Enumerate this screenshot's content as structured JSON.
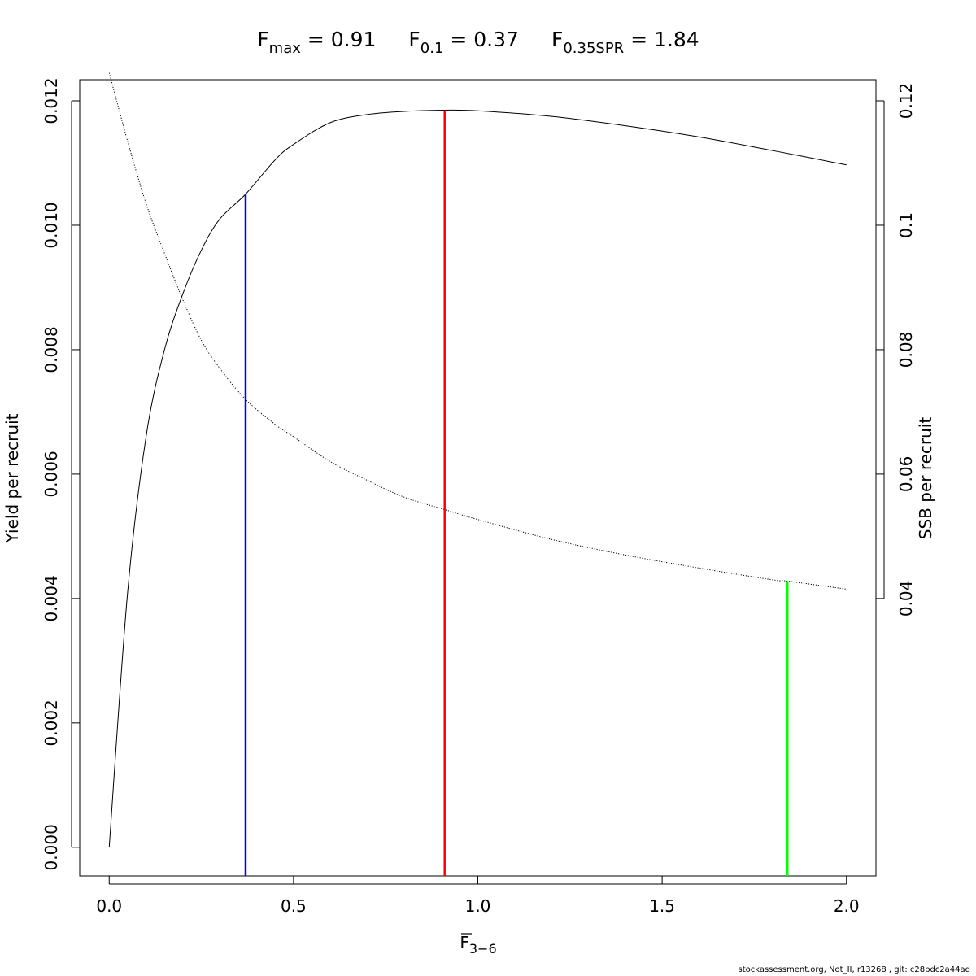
{
  "title": {
    "fmax": {
      "base": "F",
      "sub": "max",
      "value": " = 0.91"
    },
    "f01": {
      "base": "F",
      "sub": "0.1",
      "value": " = 0.37"
    },
    "fspr": {
      "base": "F",
      "sub": "0.35SPR",
      "value": " = 1.84"
    }
  },
  "footer": "stockassessment.org, Not_II, r13268 , git: c28bdc2a44ad",
  "chart_data": {
    "type": "line",
    "xlabel": {
      "base": "F",
      "sub": "3−6",
      "overline": true
    },
    "ylabel_left": "Yield per recruit",
    "ylabel_right": "SSB per recruit",
    "xlim": [
      -0.08,
      2.08
    ],
    "ylim_left": [
      -0.00046,
      0.01234
    ],
    "ylim_right": [
      -0.0046,
      0.1234
    ],
    "x_ticks": [
      "0.0",
      "0.5",
      "1.0",
      "1.5",
      "2.0"
    ],
    "y_left_ticks": [
      "0.000",
      "0.002",
      "0.004",
      "0.006",
      "0.008",
      "0.010",
      "0.012"
    ],
    "y_right_ticks": [
      "0.04",
      "0.06",
      "0.08",
      "0.1",
      "0.12"
    ],
    "series": [
      {
        "axis": "left",
        "style": "solid",
        "color": "#000000",
        "x": [
          0,
          0.05,
          0.1,
          0.15,
          0.2,
          0.25,
          0.3,
          0.37,
          0.45,
          0.5,
          0.6,
          0.7,
          0.8,
          0.91,
          1.0,
          1.2,
          1.4,
          1.6,
          1.8,
          2.0
        ],
        "y": [
          0.0,
          0.0041,
          0.0066,
          0.008,
          0.0089,
          0.0096,
          0.0101,
          0.0105,
          0.01105,
          0.0113,
          0.01165,
          0.01178,
          0.01183,
          0.01185,
          0.01184,
          0.01175,
          0.0116,
          0.01142,
          0.0112,
          0.01097
        ]
      },
      {
        "axis": "right",
        "style": "dotted",
        "color": "#000000",
        "x": [
          0,
          0.05,
          0.1,
          0.15,
          0.2,
          0.25,
          0.3,
          0.37,
          0.45,
          0.5,
          0.6,
          0.7,
          0.8,
          0.91,
          1.0,
          1.2,
          1.4,
          1.6,
          1.8,
          1.84,
          2.0
        ],
        "y": [
          0.1245,
          0.1135,
          0.1035,
          0.0955,
          0.088,
          0.0815,
          0.077,
          0.072,
          0.068,
          0.066,
          0.062,
          0.059,
          0.0563,
          0.0543,
          0.0527,
          0.0495,
          0.047,
          0.0449,
          0.043,
          0.0428,
          0.0415
        ]
      }
    ],
    "reference_lines": [
      {
        "name": "F0.1",
        "x": 0.37,
        "axis": "left",
        "y_top": 0.0105,
        "color": "#0000ff"
      },
      {
        "name": "Fmax",
        "x": 0.91,
        "axis": "left",
        "y_top": 0.01185,
        "color": "#ff0000"
      },
      {
        "name": "F0.35SPR",
        "x": 1.84,
        "axis": "right",
        "y_top": 0.0428,
        "color": "#00ff00"
      }
    ]
  }
}
